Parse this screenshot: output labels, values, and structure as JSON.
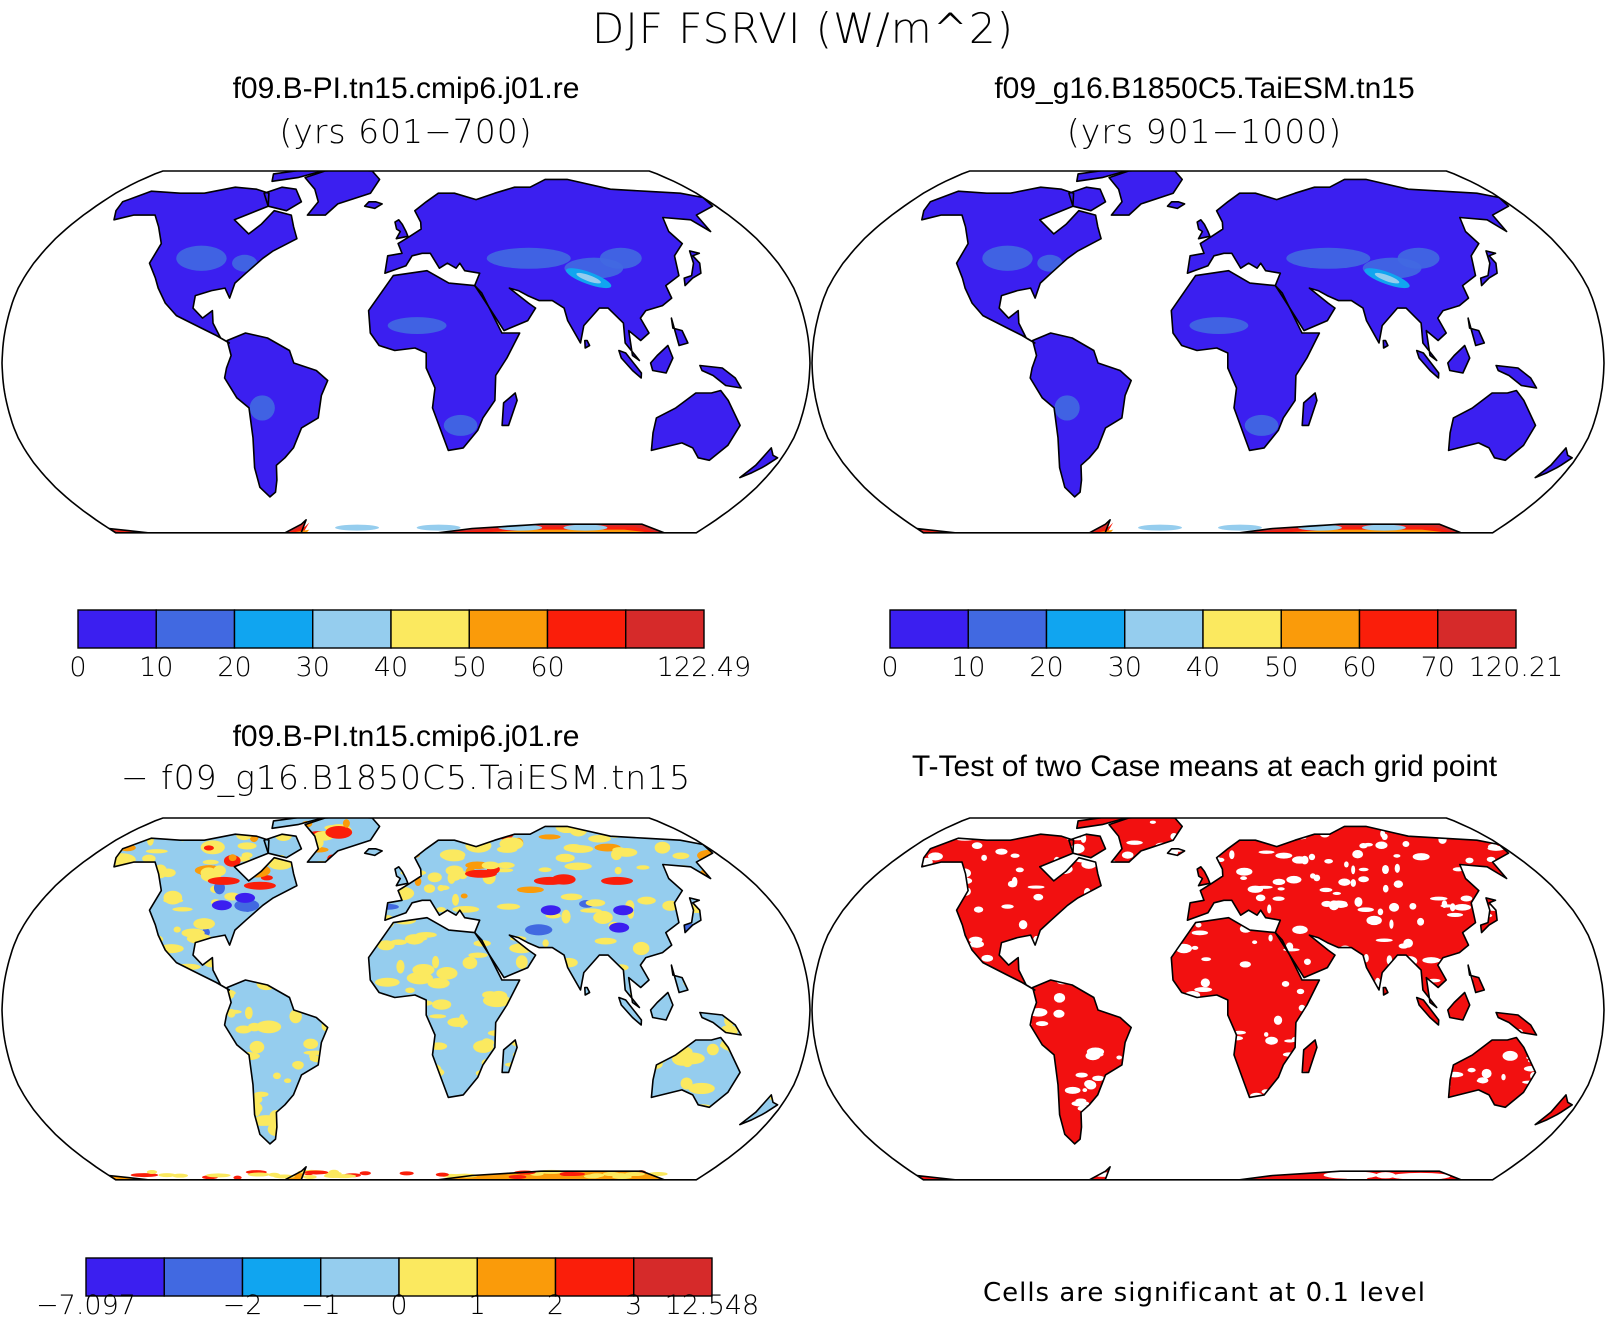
{
  "title": "DJF FSRVI (W/m^2)",
  "colors": {
    "levels": [
      "#3b1ff0",
      "#4169e1",
      "#10a5f0",
      "#95cdee",
      "#fbe95f",
      "#fa9b0a",
      "#fa1e0a",
      "#d62a2a"
    ],
    "significant": "#f21010"
  },
  "chart_data": [
    {
      "type": "heatmap",
      "title": "f09.B-PI.tn15.cmip6.j01.re",
      "subtitle": "(yrs 601−700)",
      "colorbar": {
        "ticks": [
          "0",
          "10",
          "20",
          "30",
          "40",
          "50",
          "60",
          "",
          "122.49"
        ]
      }
    },
    {
      "type": "heatmap",
      "title": "f09_g16.B1850C5.TaiESM.tn15",
      "subtitle": "(yrs 901−1000)",
      "colorbar": {
        "ticks": [
          "0",
          "10",
          "20",
          "30",
          "40",
          "50",
          "60",
          "70",
          "120.21"
        ]
      }
    },
    {
      "type": "heatmap",
      "title": "f09.B-PI.tn15.cmip6.j01.re",
      "subtitle": "− f09_g16.B1850C5.TaiESM.tn15",
      "colorbar": {
        "ticks": [
          "−7.097",
          "",
          "−2",
          "−1",
          "0",
          "1",
          "2",
          "3",
          "12.548"
        ]
      }
    },
    {
      "type": "heatmap",
      "title": "T-Test of two Case means at each grid point",
      "note": "Cells are significant at 0.1 level"
    }
  ]
}
